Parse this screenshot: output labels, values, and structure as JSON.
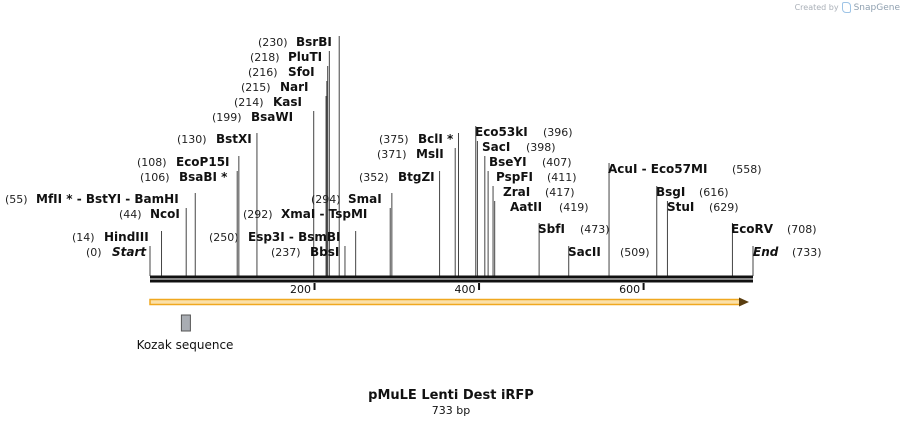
{
  "credit": {
    "prefix": "Created by",
    "brand": "SnapGene"
  },
  "title": "pMuLE Lenti Dest iRFP",
  "subtitle": "733 bp",
  "total_length": 733,
  "ruler_ticks": [
    {
      "bp": 200,
      "label": "200"
    },
    {
      "bp": 400,
      "label": "400"
    },
    {
      "bp": 600,
      "label": "600"
    }
  ],
  "feature": {
    "label": "Kozak sequence",
    "bp_start": 40,
    "bp_end": 50,
    "color": "#a9adb3"
  },
  "orf": {
    "bp_start": 0,
    "bp_end": 733,
    "color": "#f0a820"
  },
  "sites": [
    {
      "pos": "(0)",
      "label": "Start",
      "bp": 0,
      "italic": true
    },
    {
      "pos": "(14)",
      "label": "HindIII",
      "bp": 14
    },
    {
      "pos": "(44)",
      "label": "NcoI",
      "bp": 44
    },
    {
      "pos": "(55)",
      "label": "MfII * - BstYI  - BamHI",
      "bp": 55
    },
    {
      "pos": "(106)",
      "label": "BsaBI *",
      "bp": 106
    },
    {
      "pos": "(108)",
      "label": "EcoP15I",
      "bp": 108
    },
    {
      "pos": "(130)",
      "label": "BstXI",
      "bp": 130
    },
    {
      "pos": "(199)",
      "label": "BsaWI",
      "bp": 199
    },
    {
      "pos": "(214)",
      "label": "KasI",
      "bp": 214
    },
    {
      "pos": "(215)",
      "label": "NarI",
      "bp": 215
    },
    {
      "pos": "(216)",
      "label": "SfoI",
      "bp": 216
    },
    {
      "pos": "(218)",
      "label": "PluTI",
      "bp": 218
    },
    {
      "pos": "(230)",
      "label": "BsrBI",
      "bp": 230
    },
    {
      "pos": "(237)",
      "label": "BbsI",
      "bp": 237
    },
    {
      "pos": "(250)",
      "label": "Esp3I  - BsmBI",
      "bp": 250
    },
    {
      "pos": "(292)",
      "label": "XmaI  - TspMI",
      "bp": 292
    },
    {
      "pos": "(294)",
      "label": "SmaI",
      "bp": 294
    },
    {
      "pos": "(352)",
      "label": "BtgZI",
      "bp": 352
    },
    {
      "pos": "(371)",
      "label": "MslI",
      "bp": 371
    },
    {
      "pos": "(375)",
      "label": "BclI *",
      "bp": 375
    },
    {
      "pos": "(396)",
      "label": "Eco53kI",
      "bp": 396
    },
    {
      "pos": "(398)",
      "label": "SacI",
      "bp": 398
    },
    {
      "pos": "(407)",
      "label": "BseYI",
      "bp": 407
    },
    {
      "pos": "(411)",
      "label": "PspFI",
      "bp": 411
    },
    {
      "pos": "(417)",
      "label": "ZraI",
      "bp": 417
    },
    {
      "pos": "(419)",
      "label": "AatII",
      "bp": 419
    },
    {
      "pos": "(473)",
      "label": "SbfI",
      "bp": 473
    },
    {
      "pos": "(509)",
      "label": "SacII",
      "bp": 509
    },
    {
      "pos": "(558)",
      "label": "AcuI  - Eco57MI",
      "bp": 558
    },
    {
      "pos": "(616)",
      "label": "BsgI",
      "bp": 616
    },
    {
      "pos": "(629)",
      "label": "StuI",
      "bp": 629
    },
    {
      "pos": "(708)",
      "label": "EcoRV",
      "bp": 708
    },
    {
      "pos": "(733)",
      "label": "End",
      "bp": 733,
      "italic": true
    }
  ]
}
